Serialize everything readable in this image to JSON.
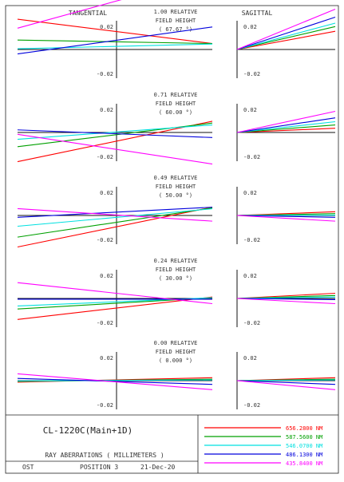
{
  "header": {
    "tangential_label": "TANGENTIAL",
    "sagittal_label": "SAGITTAL"
  },
  "footer": {
    "design_name": "CL-1220C(Main+1D)",
    "plot_title": "RAY ABERRATIONS ( MILLIMETERS )",
    "ost_label": "OST",
    "position_label": "POSITION 3",
    "date_label": "21-Dec-20"
  },
  "chart_data": {
    "type": "line",
    "axis_limit": 0.02,
    "y_tick_top": "0.02",
    "y_tick_bottom": "-0.02",
    "wavelength_colors": {
      "656.2800 NM": "#ff0000",
      "587.5600 NM": "#00a000",
      "546.0700 NM": "#00e0e0",
      "486.1300 NM": "#0000dd",
      "435.8400 NM": "#ff00ff"
    },
    "legend": [
      {
        "label": "656.2800 NM",
        "color": "#ff0000"
      },
      {
        "label": "587.5600 NM",
        "color": "#00a000"
      },
      {
        "label": "546.0700 NM",
        "color": "#00e0e0"
      },
      {
        "label": "486.1300 NM",
        "color": "#0000dd"
      },
      {
        "label": "435.8400 NM",
        "color": "#ff00ff"
      }
    ],
    "fields": [
      {
        "relative": "1.00 RELATIVE",
        "field_height": "FIELD HEIGHT",
        "angle": "( 67.67 °)",
        "tangential": [
          {
            "wavelength": "656.2800 NM",
            "left": -0.0245,
            "right": -0.0048
          },
          {
            "wavelength": "587.5600 NM",
            "left": -0.0076,
            "right": -0.0048
          },
          {
            "wavelength": "546.0700 NM",
            "left": -0.0006,
            "right": -0.0044
          },
          {
            "wavelength": "486.1300 NM",
            "left": 0.0036,
            "right": -0.0182
          },
          {
            "wavelength": "435.8400 NM",
            "left": -0.0172,
            "right": -0.0605
          }
        ],
        "sagittal": [
          {
            "wavelength": "656.2800 NM",
            "right": -0.0147
          },
          {
            "wavelength": "587.5600 NM",
            "right": -0.0185
          },
          {
            "wavelength": "546.0700 NM",
            "right": -0.0213
          },
          {
            "wavelength": "486.1300 NM",
            "right": -0.0261
          },
          {
            "wavelength": "435.8400 NM",
            "right": -0.0326
          }
        ]
      },
      {
        "relative": "0.71 RELATIVE",
        "field_height": "FIELD HEIGHT",
        "angle": "( 60.00 °)",
        "tangential": [
          {
            "wavelength": "656.2800 NM",
            "left": 0.0236,
            "right": -0.0091
          },
          {
            "wavelength": "587.5600 NM",
            "left": 0.0115,
            "right": -0.0076
          },
          {
            "wavelength": "546.0700 NM",
            "left": 0.0055,
            "right": -0.0061
          },
          {
            "wavelength": "486.1300 NM",
            "left": -0.0021,
            "right": 0.0041
          },
          {
            "wavelength": "435.8400 NM",
            "left": 0.0015,
            "right": 0.0255
          }
        ],
        "sagittal": [
          {
            "wavelength": "656.2800 NM",
            "right": -0.0034
          },
          {
            "wavelength": "587.5600 NM",
            "right": -0.0061
          },
          {
            "wavelength": "546.0700 NM",
            "right": -0.0087
          },
          {
            "wavelength": "486.1300 NM",
            "right": -0.0118
          },
          {
            "wavelength": "435.8400 NM",
            "right": -0.0171
          }
        ]
      },
      {
        "relative": "0.49 RELATIVE",
        "field_height": "FIELD HEIGHT",
        "angle": "( 50.00 °)",
        "tangential": [
          {
            "wavelength": "656.2800 NM",
            "left": 0.0255,
            "right": -0.0067
          },
          {
            "wavelength": "587.5600 NM",
            "left": 0.0175,
            "right": -0.0061
          },
          {
            "wavelength": "546.0700 NM",
            "left": 0.0087,
            "right": -0.0054
          },
          {
            "wavelength": "486.1300 NM",
            "left": 0.0015,
            "right": -0.0067
          },
          {
            "wavelength": "435.8400 NM",
            "left": -0.0055,
            "right": 0.0046
          }
        ],
        "sagittal": [
          {
            "wavelength": "656.2800 NM",
            "right": -0.003
          },
          {
            "wavelength": "587.5600 NM",
            "right": -0.0015
          },
          {
            "wavelength": "546.0700 NM",
            "right": -0.0003
          },
          {
            "wavelength": "486.1300 NM",
            "right": 0.0015
          },
          {
            "wavelength": "435.8400 NM",
            "right": 0.0046
          }
        ]
      },
      {
        "relative": "0.24 RELATIVE",
        "field_height": "FIELD HEIGHT",
        "angle": "( 30.00 °)",
        "tangential": [
          {
            "wavelength": "656.2800 NM",
            "left": 0.017,
            "right": -0.0012
          },
          {
            "wavelength": "587.5600 NM",
            "left": 0.0085,
            "right": -0.0006
          },
          {
            "wavelength": "546.0700 NM",
            "left": 0.0061,
            "right": -0.0006
          },
          {
            "wavelength": "486.1300 NM",
            "left": 0.0006,
            "right": 0.0006
          },
          {
            "wavelength": "435.8400 NM",
            "left": -0.0128,
            "right": 0.0042
          }
        ],
        "sagittal": [
          {
            "wavelength": "656.2800 NM",
            "right": -0.0042
          },
          {
            "wavelength": "587.5600 NM",
            "right": -0.0024
          },
          {
            "wavelength": "546.0700 NM",
            "right": -0.0012
          },
          {
            "wavelength": "486.1300 NM",
            "right": 0.0009
          },
          {
            "wavelength": "435.8400 NM",
            "right": 0.0042
          }
        ]
      },
      {
        "relative": "0.00 RELATIVE",
        "field_height": "FIELD HEIGHT",
        "angle": "( 0.000 °)",
        "tangential": [
          {
            "wavelength": "656.2800 NM",
            "left": 0.0012,
            "right": -0.0024
          },
          {
            "wavelength": "587.5600 NM",
            "left": 0.0006,
            "right": -0.0012
          },
          {
            "wavelength": "546.0700 NM",
            "left": 0.0003,
            "right": -0.0006
          },
          {
            "wavelength": "486.1300 NM",
            "left": -0.0018,
            "right": 0.003
          },
          {
            "wavelength": "435.8400 NM",
            "left": -0.0055,
            "right": 0.0073
          }
        ],
        "sagittal": [
          {
            "wavelength": "656.2800 NM",
            "right": -0.0024
          },
          {
            "wavelength": "587.5600 NM",
            "right": -0.0012
          },
          {
            "wavelength": "546.0700 NM",
            "right": -0.0006
          },
          {
            "wavelength": "486.1300 NM",
            "right": 0.003
          },
          {
            "wavelength": "435.8400 NM",
            "right": 0.0073
          }
        ]
      }
    ]
  }
}
